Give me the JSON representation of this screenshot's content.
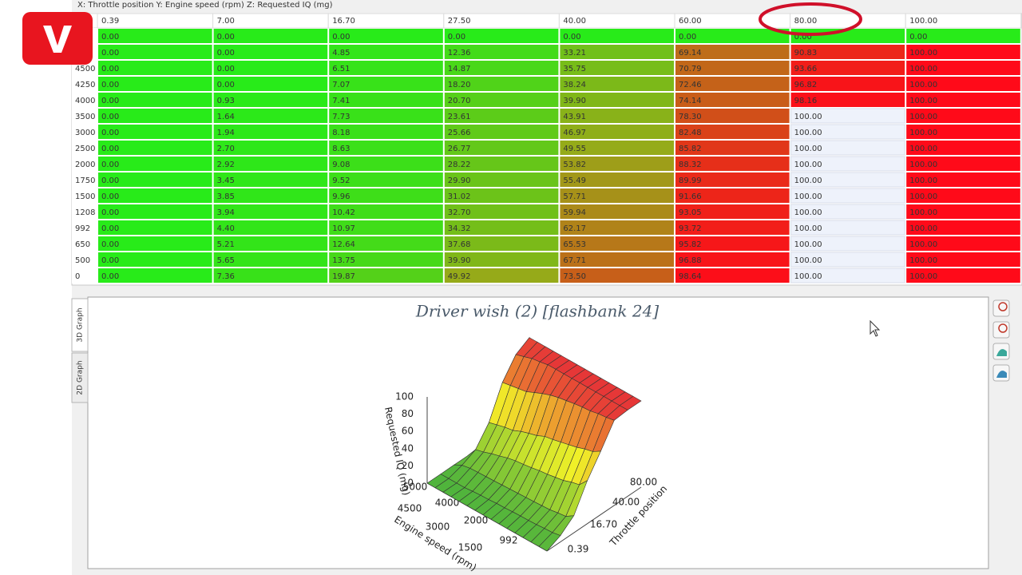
{
  "header": {
    "title": "X: Throttle  position Y: Engine speed (rpm) Z: Requested IQ (mg)"
  },
  "table": {
    "columns": [
      "0.39",
      "7.00",
      "16.70",
      "27.50",
      "40.00",
      "60.00",
      "80.00",
      "100.00"
    ],
    "rows": [
      {
        "cells": [
          "0.00",
          "0.00",
          "0.00",
          "0.00",
          "0.00",
          "0.00",
          "0.00",
          "0.00"
        ]
      },
      {
        "cells": [
          "0.00",
          "0.00",
          "4.85",
          "12.36",
          "33.21",
          "69.14",
          "90.83",
          "100.00"
        ]
      },
      {
        "label": "4500",
        "cells": [
          "0.00",
          "0.00",
          "6.51",
          "14.87",
          "35.75",
          "70.79",
          "93.66",
          "100.00"
        ]
      },
      {
        "label": "4250",
        "cells": [
          "0.00",
          "0.00",
          "7.07",
          "18.20",
          "38.24",
          "72.46",
          "96.82",
          "100.00"
        ]
      },
      {
        "label": "4000",
        "cells": [
          "0.00",
          "0.93",
          "7.41",
          "20.70",
          "39.90",
          "74.14",
          "98.16",
          "100.00"
        ]
      },
      {
        "label": "3500",
        "cells": [
          "0.00",
          "1.64",
          "7.73",
          "23.61",
          "43.91",
          "78.30",
          "100.00",
          "100.00"
        ]
      },
      {
        "label": "3000",
        "cells": [
          "0.00",
          "1.94",
          "8.18",
          "25.66",
          "46.97",
          "82.48",
          "100.00",
          "100.00"
        ]
      },
      {
        "label": "2500",
        "cells": [
          "0.00",
          "2.70",
          "8.63",
          "26.77",
          "49.55",
          "85.82",
          "100.00",
          "100.00"
        ]
      },
      {
        "label": "2000",
        "cells": [
          "0.00",
          "2.92",
          "9.08",
          "28.22",
          "53.82",
          "88.32",
          "100.00",
          "100.00"
        ]
      },
      {
        "label": "1750",
        "cells": [
          "0.00",
          "3.45",
          "9.52",
          "29.90",
          "55.49",
          "89.99",
          "100.00",
          "100.00"
        ]
      },
      {
        "label": "1500",
        "cells": [
          "0.00",
          "3.85",
          "9.96",
          "31.02",
          "57.71",
          "91.66",
          "100.00",
          "100.00"
        ]
      },
      {
        "label": "1208",
        "cells": [
          "0.00",
          "3.94",
          "10.42",
          "32.70",
          "59.94",
          "93.05",
          "100.00",
          "100.00"
        ]
      },
      {
        "label": "992",
        "cells": [
          "0.00",
          "4.40",
          "10.97",
          "34.32",
          "62.17",
          "93.72",
          "100.00",
          "100.00"
        ]
      },
      {
        "label": "650",
        "cells": [
          "0.00",
          "5.21",
          "12.64",
          "37.68",
          "65.53",
          "95.82",
          "100.00",
          "100.00"
        ]
      },
      {
        "label": "500",
        "cells": [
          "0.00",
          "5.65",
          "13.75",
          "39.90",
          "67.71",
          "96.88",
          "100.00",
          "100.00"
        ]
      },
      {
        "label": "0",
        "cells": [
          "0.00",
          "7.36",
          "19.87",
          "49.92",
          "73.50",
          "98.64",
          "100.00",
          "100.00"
        ]
      }
    ]
  },
  "graph": {
    "tabs": [
      "3D Graph",
      "2D Graph"
    ],
    "title": "Driver wish (2) [flashbank 24]",
    "z_label": "Requested IQ (mg)",
    "y_label": "Engine speed (rpm)",
    "x_label": "Throttle position",
    "z_ticks": [
      "0",
      "20",
      "40",
      "60",
      "80",
      "100"
    ],
    "y_ticks": [
      "5000",
      "4500",
      "4000",
      "3000",
      "2000",
      "1500",
      "992"
    ],
    "x_ticks": [
      "0.39",
      "16.70",
      "40.00",
      "80.00"
    ]
  }
}
